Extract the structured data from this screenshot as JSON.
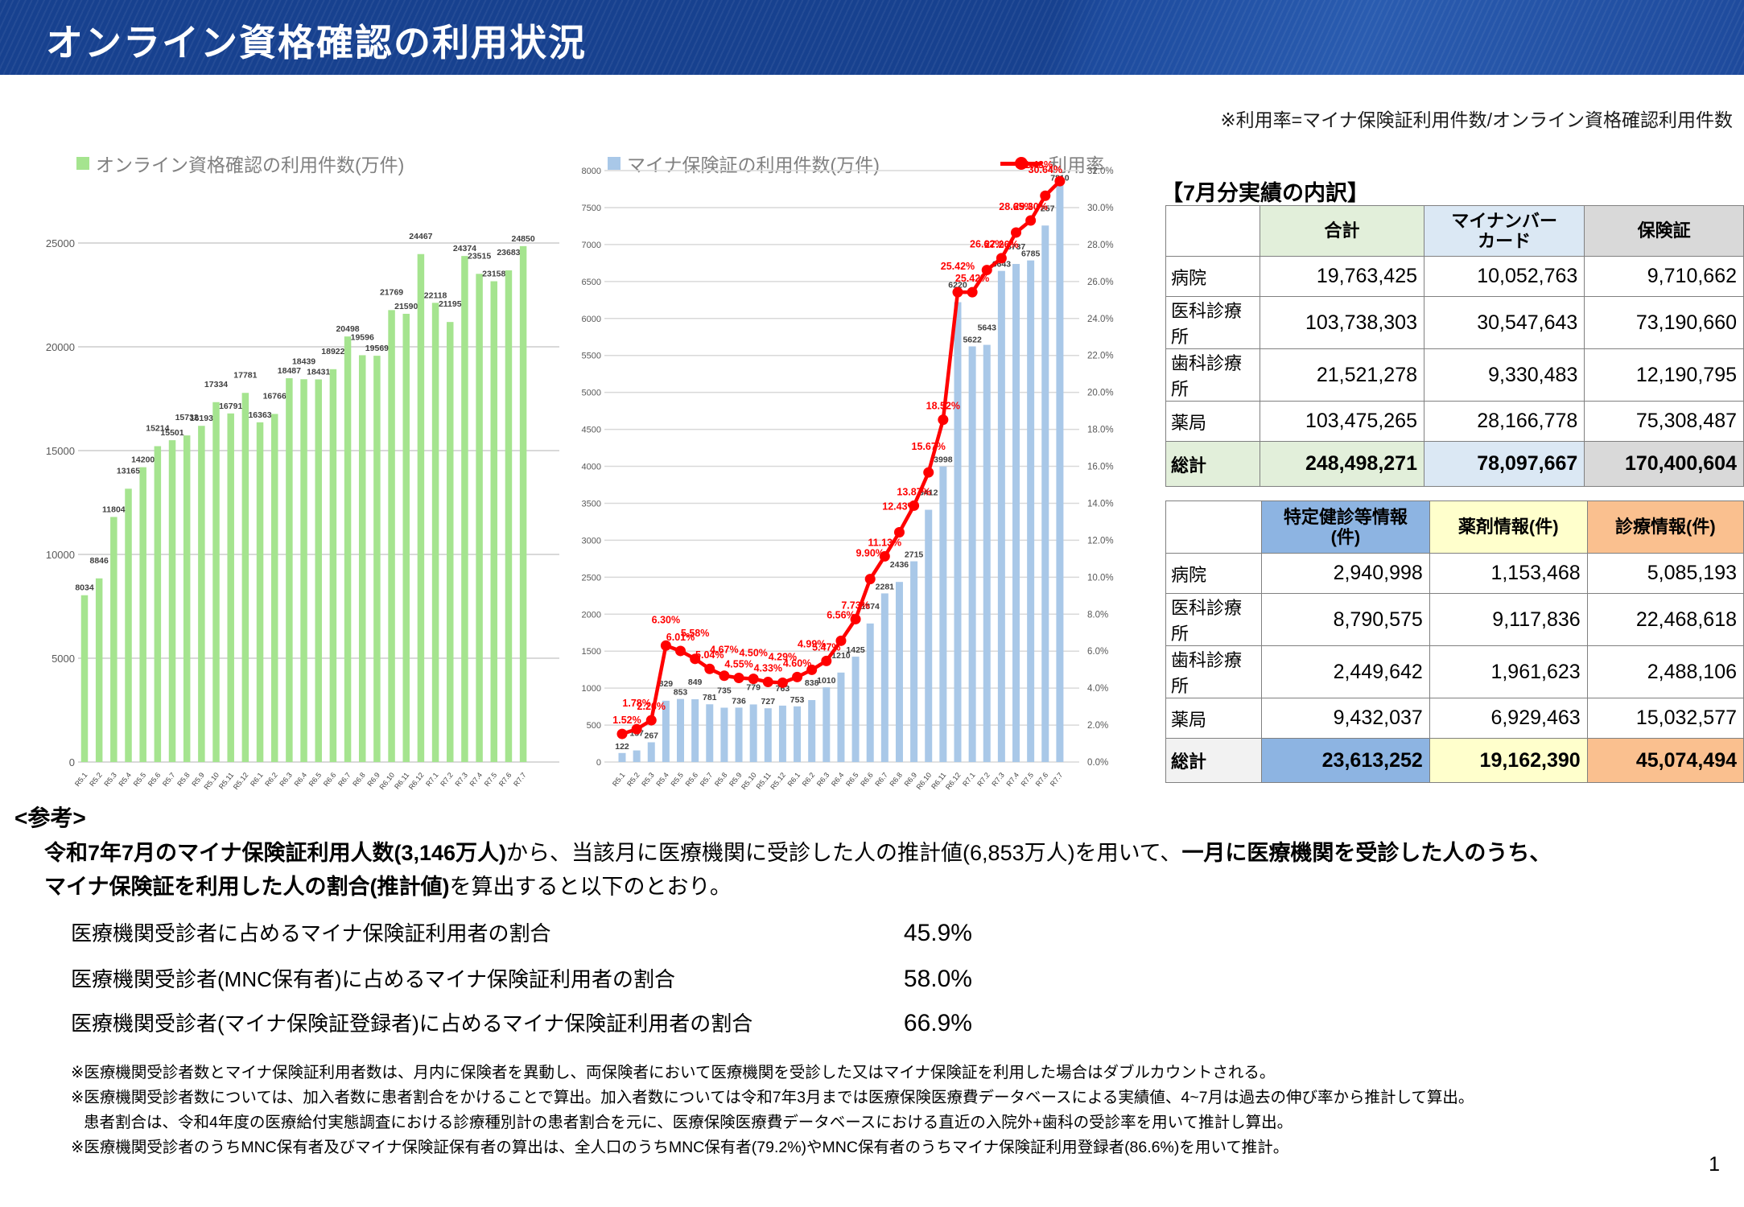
{
  "header": {
    "title": "オンライン資格確認の利用状況"
  },
  "rate_note": "※利用率=マイナ保険証利用件数/オンライン資格確認利用件数",
  "legend": {
    "green_label": "オンライン資格確認の利用件数(万件)",
    "blue_label": "マイナ保険証の利用件数(万件)",
    "line_label": "利用率"
  },
  "colors": {
    "header_blue": "#17418f",
    "green_bar": "#a5e48f",
    "blue_bar": "#a9c8e8",
    "rate_red": "#ff0000",
    "grid": "#d9d9d9",
    "value_label": "#3f3f3f",
    "axis_label": "#595959"
  },
  "chart_data": [
    {
      "type": "bar",
      "title": "オンライン資格確認の利用件数(万件)",
      "categories": [
        "R5.1",
        "R5.2",
        "R5.3",
        "R5.4",
        "R5.5",
        "R5.6",
        "R5.7",
        "R5.8",
        "R5.9",
        "R5.10",
        "R5.11",
        "R5.12",
        "R6.1",
        "R6.2",
        "R6.3",
        "R6.4",
        "R6.5",
        "R6.6",
        "R6.7",
        "R6.8",
        "R6.9",
        "R6.10",
        "R6.11",
        "R6.12",
        "R7.1",
        "R7.2",
        "R7.3",
        "R7.4",
        "R7.5",
        "R7.6",
        "R7.7"
      ],
      "values": [
        8034,
        8846,
        11804,
        13165,
        14200,
        15214,
        15501,
        15732,
        16193,
        17334,
        16791,
        17781,
        16363,
        16766,
        18487,
        18439,
        18431,
        18922,
        20498,
        19596,
        19569,
        21769,
        21590,
        24467,
        22118,
        21195,
        24374,
        23515,
        23158,
        23683,
        24850
      ],
      "ylabel": "",
      "ylim": [
        0,
        25000
      ],
      "ytick_step": 5000,
      "grid": true,
      "legend_position": "top"
    },
    {
      "type": "bar+line",
      "title": "マイナ保険証の利用件数(万件)と利用率",
      "categories": [
        "R5.1",
        "R5.2",
        "R5.3",
        "R5.4",
        "R5.5",
        "R5.6",
        "R5.7",
        "R5.8",
        "R5.9",
        "R5.10",
        "R5.11",
        "R5.12",
        "R6.1",
        "R6.2",
        "R6.3",
        "R6.4",
        "R6.5",
        "R6.6",
        "R6.7",
        "R6.8",
        "R6.9",
        "R6.10",
        "R6.11",
        "R6.12",
        "R7.1",
        "R7.2",
        "R7.3",
        "R7.4",
        "R7.5",
        "R7.6",
        "R7.7"
      ],
      "series": [
        {
          "name": "マイナ保険証の利用件数(万件)",
          "type": "bar",
          "axis": "left",
          "values": [
            122,
            157,
            267,
            829,
            853,
            849,
            781,
            735,
            736,
            779,
            727,
            763,
            753,
            838,
            1010,
            1210,
            1425,
            1874,
            2281,
            2436,
            2715,
            3412,
            3998,
            6220,
            5622,
            5643,
            6643,
            6737,
            6785,
            7257,
            7810
          ]
        },
        {
          "name": "利用率",
          "type": "line",
          "axis": "right",
          "values": [
            1.52,
            1.78,
            2.26,
            6.3,
            6.01,
            5.58,
            5.04,
            4.67,
            4.55,
            4.5,
            4.33,
            4.29,
            4.6,
            4.99,
            5.47,
            6.56,
            7.73,
            9.9,
            11.13,
            12.43,
            13.87,
            15.67,
            18.52,
            25.42,
            25.42,
            26.62,
            27.26,
            28.65,
            29.3,
            30.64,
            31.43
          ]
        }
      ],
      "ylim_left": [
        0,
        8000
      ],
      "ytick_step_left": 500,
      "ylim_right": [
        0,
        32
      ],
      "ytick_step_right": 2,
      "grid": true
    }
  ],
  "breakdown": {
    "title": "【7月分実績の内訳】",
    "table1": {
      "headers": [
        "",
        "合計",
        "マイナンバー\nカード",
        "保険証"
      ],
      "rows": [
        {
          "label": "病院",
          "values": [
            "19,763,425",
            "10,052,763",
            "9,710,662"
          ]
        },
        {
          "label": "医科診療所",
          "values": [
            "103,738,303",
            "30,547,643",
            "73,190,660"
          ]
        },
        {
          "label": "歯科診療所",
          "values": [
            "21,521,278",
            "9,330,483",
            "12,190,795"
          ]
        },
        {
          "label": "薬局",
          "values": [
            "103,475,265",
            "28,166,778",
            "75,308,487"
          ]
        }
      ],
      "total": {
        "label": "総計",
        "values": [
          "248,498,271",
          "78,097,667",
          "170,400,604"
        ]
      }
    },
    "table2": {
      "headers": [
        "",
        "特定健診等情報\n(件)",
        "薬剤情報(件)",
        "診療情報(件)"
      ],
      "rows": [
        {
          "label": "病院",
          "values": [
            "2,940,998",
            "1,153,468",
            "5,085,193"
          ]
        },
        {
          "label": "医科診療所",
          "values": [
            "8,790,575",
            "9,117,836",
            "22,468,618"
          ]
        },
        {
          "label": "歯科診療所",
          "values": [
            "2,449,642",
            "1,961,623",
            "2,488,106"
          ]
        },
        {
          "label": "薬局",
          "values": [
            "9,432,037",
            "6,929,463",
            "15,032,577"
          ]
        }
      ],
      "total": {
        "label": "総計",
        "values": [
          "23,613,252",
          "19,162,390",
          "45,074,494"
        ]
      }
    }
  },
  "reference": {
    "heading": "<参考>",
    "intro_line1_bold1": "令和7年7月のマイナ保険証利用人数(3,146万人)",
    "intro_line1_normal1": "から、当該月に医療機関に受診した人の推計値(6,853万人)を用いて、",
    "intro_line1_bold2": "一月に医療機関を受診した人のうち、",
    "intro_line2_bold": "マイナ保険証を利用した人の割合(推計値)",
    "intro_line2_normal": "を算出すると以下のとおり。",
    "ratios": [
      {
        "label": "医療機関受診者に占めるマイナ保険証利用者の割合",
        "value": "45.9%"
      },
      {
        "label": "医療機関受診者(MNC保有者)に占めるマイナ保険証利用者の割合",
        "value": "58.0%"
      },
      {
        "label": "医療機関受診者(マイナ保険証登録者)に占めるマイナ保険証利用者の割合",
        "value": "66.9%"
      }
    ],
    "footnotes": [
      "※医療機関受診者数とマイナ保険証利用者数は、月内に保険者を異動し、両保険者において医療機関を受診した又はマイナ保険証を利用した場合はダブルカウントされる。",
      "※医療機関受診者数については、加入者数に患者割合をかけることで算出。加入者数については令和7年3月までは医療保険医療費データベースによる実績値、4~7月は過去の伸び率から推計して算出。",
      "患者割合は、令和4年度の医療給付実態調査における診療種別計の患者割合を元に、医療保険医療費データベースにおける直近の入院外+歯科の受診率を用いて推計し算出。",
      "※医療機関受診者のうちMNC保有者及びマイナ保険証保有者の算出は、全人口のうちMNC保有者(79.2%)やMNC保有者のうちマイナ保険証利用登録者(86.6%)を用いて推計。"
    ]
  },
  "page_number": "1"
}
